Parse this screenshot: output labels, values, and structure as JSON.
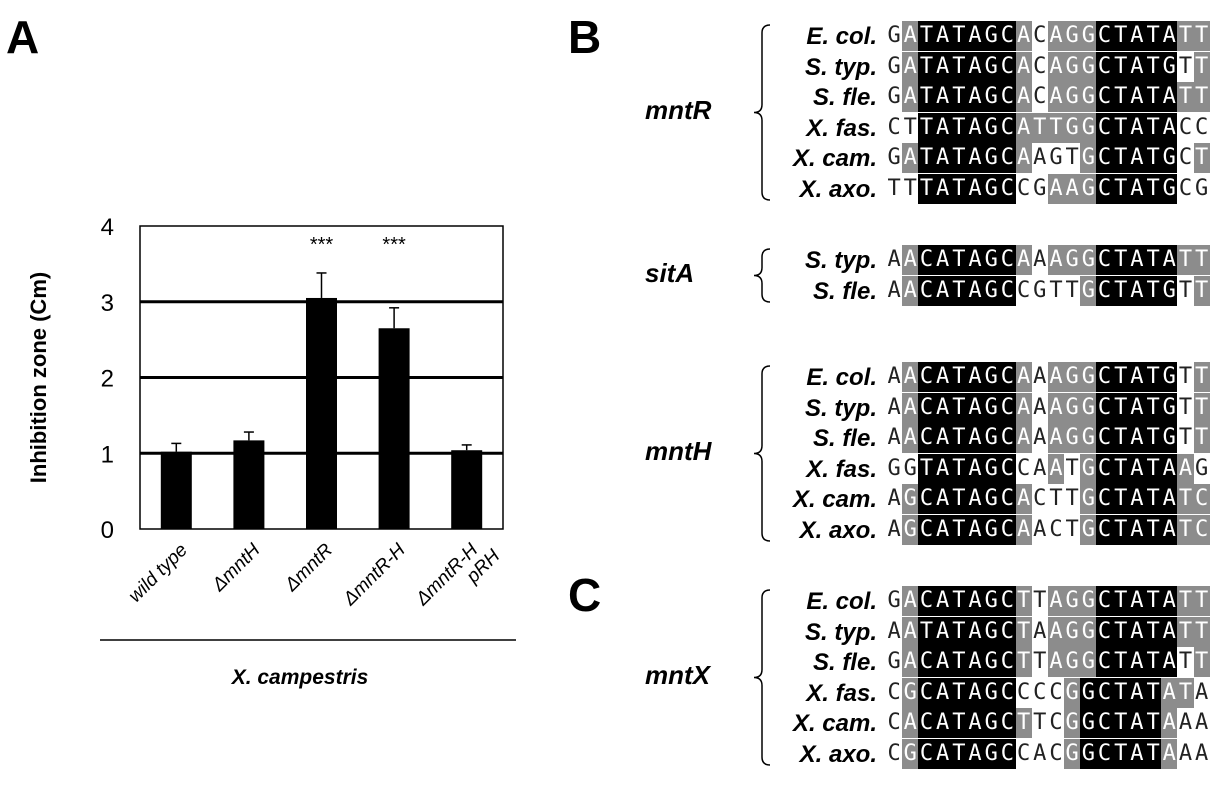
{
  "panels": {
    "a": "A",
    "b": "B",
    "c": "C"
  },
  "chart_data": {
    "type": "bar",
    "categories": [
      "wild type",
      "ΔmntH",
      "ΔmntR",
      "ΔmntR-H",
      "ΔmntR-H pRH"
    ],
    "category_lines": [
      [
        "wild type"
      ],
      [
        "ΔmntH"
      ],
      [
        "ΔmntR"
      ],
      [
        "ΔmntR-H"
      ],
      [
        "ΔmntR-H",
        "pRH"
      ]
    ],
    "values": [
      1.02,
      1.17,
      3.05,
      2.65,
      1.04
    ],
    "errors": [
      0.11,
      0.11,
      0.33,
      0.27,
      0.07
    ],
    "significance": [
      "",
      "",
      "***",
      "***",
      ""
    ],
    "ylabel": "Inhibition zone (Cm)",
    "xgroup_label": "X. campestris",
    "ylim": [
      0,
      4
    ],
    "yticks": [
      "0",
      "1",
      "2",
      "3",
      "4"
    ],
    "grid": true,
    "bar_color": "#000000"
  },
  "alignments": {
    "b": [
      {
        "gene": "mntR",
        "rows": [
          {
            "species": "E. col.",
            "seq": "GATATAGCACAGGCTATATT",
            "shade": "wgkkkkkkgwgggkkkkkgg"
          },
          {
            "species": "S. typ.",
            "seq": "GATATAGCACAGGCTATGTT",
            "shade": "wgkkkkkkgwgggkkkkkwg"
          },
          {
            "species": "S. fle.",
            "seq": "GATATAGCACAGGCTATATT",
            "shade": "wgkkkkkkgwgggkkkkkgg"
          },
          {
            "species": "X. fas.",
            "seq": "CTTATAGCATTGGCTATACC",
            "shade": "wwkkkkkkgggggkkkkkww"
          },
          {
            "species": "X. cam.",
            "seq": "GATATAGCAAGTGCTATGCT",
            "shade": "wgkkkkkkgwwwgkkkkkwg"
          },
          {
            "species": "X. axo.",
            "seq": "TTTATAGCCGAAGCTATGCG",
            "shade": "wwkkkkkkwwgggkkkkkww"
          }
        ]
      },
      {
        "gene": "sitA",
        "rows": [
          {
            "species": "S. typ.",
            "seq": "AACATAGCAAAGGCTATATT",
            "shade": "wgkkkkkkgwgggkkkkkgg"
          },
          {
            "species": "S. fle.",
            "seq": "AACATAGCCGTTGCTATGTT",
            "shade": "wgkkkkkkwwwwgkkkkkwg"
          }
        ]
      },
      {
        "gene": "mntH",
        "rows": [
          {
            "species": "E. col.",
            "seq": "AACATAGCAAAGGCTATGTT",
            "shade": "wgkkkkkkgwgggkkkkkwg"
          },
          {
            "species": "S. typ.",
            "seq": "AACATAGCAAAGGCTATGTT",
            "shade": "wgkkkkkkgwgggkkkkkwg"
          },
          {
            "species": "S. fle.",
            "seq": "AACATAGCAAAGGCTATGTT",
            "shade": "wgkkkkkkgwgggkkkkkwg"
          },
          {
            "species": "X. fas.",
            "seq": "GGTATAGCCAATGCTATAAG",
            "shade": "wwkkkkkkwwgwgkkkkkgw"
          },
          {
            "species": "X. cam.",
            "seq": "AGCATAGCACTTGCTATATC",
            "shade": "wgkkkkkkgwwwgkkkkkgg"
          },
          {
            "species": "X. axo.",
            "seq": "AGCATAGCAACTGCTATATC",
            "shade": "wgkkkkkkgwwwgkkkkkgg"
          }
        ]
      }
    ],
    "c": [
      {
        "gene": "mntX",
        "rows": [
          {
            "species": "E. col.",
            "seq": "GACATAGCTTAGGCTATATT",
            "shade": "wgkkkkkkgwgggkkkkkgg"
          },
          {
            "species": "S. typ.",
            "seq": "AATATAGCTAAGGCTATATT",
            "shade": "wgkkkkkkgwgggkkkkkgg"
          },
          {
            "species": "S. fle.",
            "seq": "GACATAGCTTAGGCTATATT",
            "shade": "wgkkkkkkgwgggkkkkkwg"
          },
          {
            "species": "X. fas.",
            "seq": "CGCATAGCCCCGGCTATATA",
            "shade": "wgkkkkkkwwwgkkkkkggw"
          },
          {
            "species": "X. cam.",
            "seq": "CACATAGCTTCGGCTATAAA",
            "shade": "wgkkkkkkgwwgkkkkkgww"
          },
          {
            "species": "X. axo.",
            "seq": "CGCATAGCCACGGCTATAAA",
            "shade": "wgkkkkkkwwwgkkkkkgww"
          }
        ]
      }
    ]
  }
}
